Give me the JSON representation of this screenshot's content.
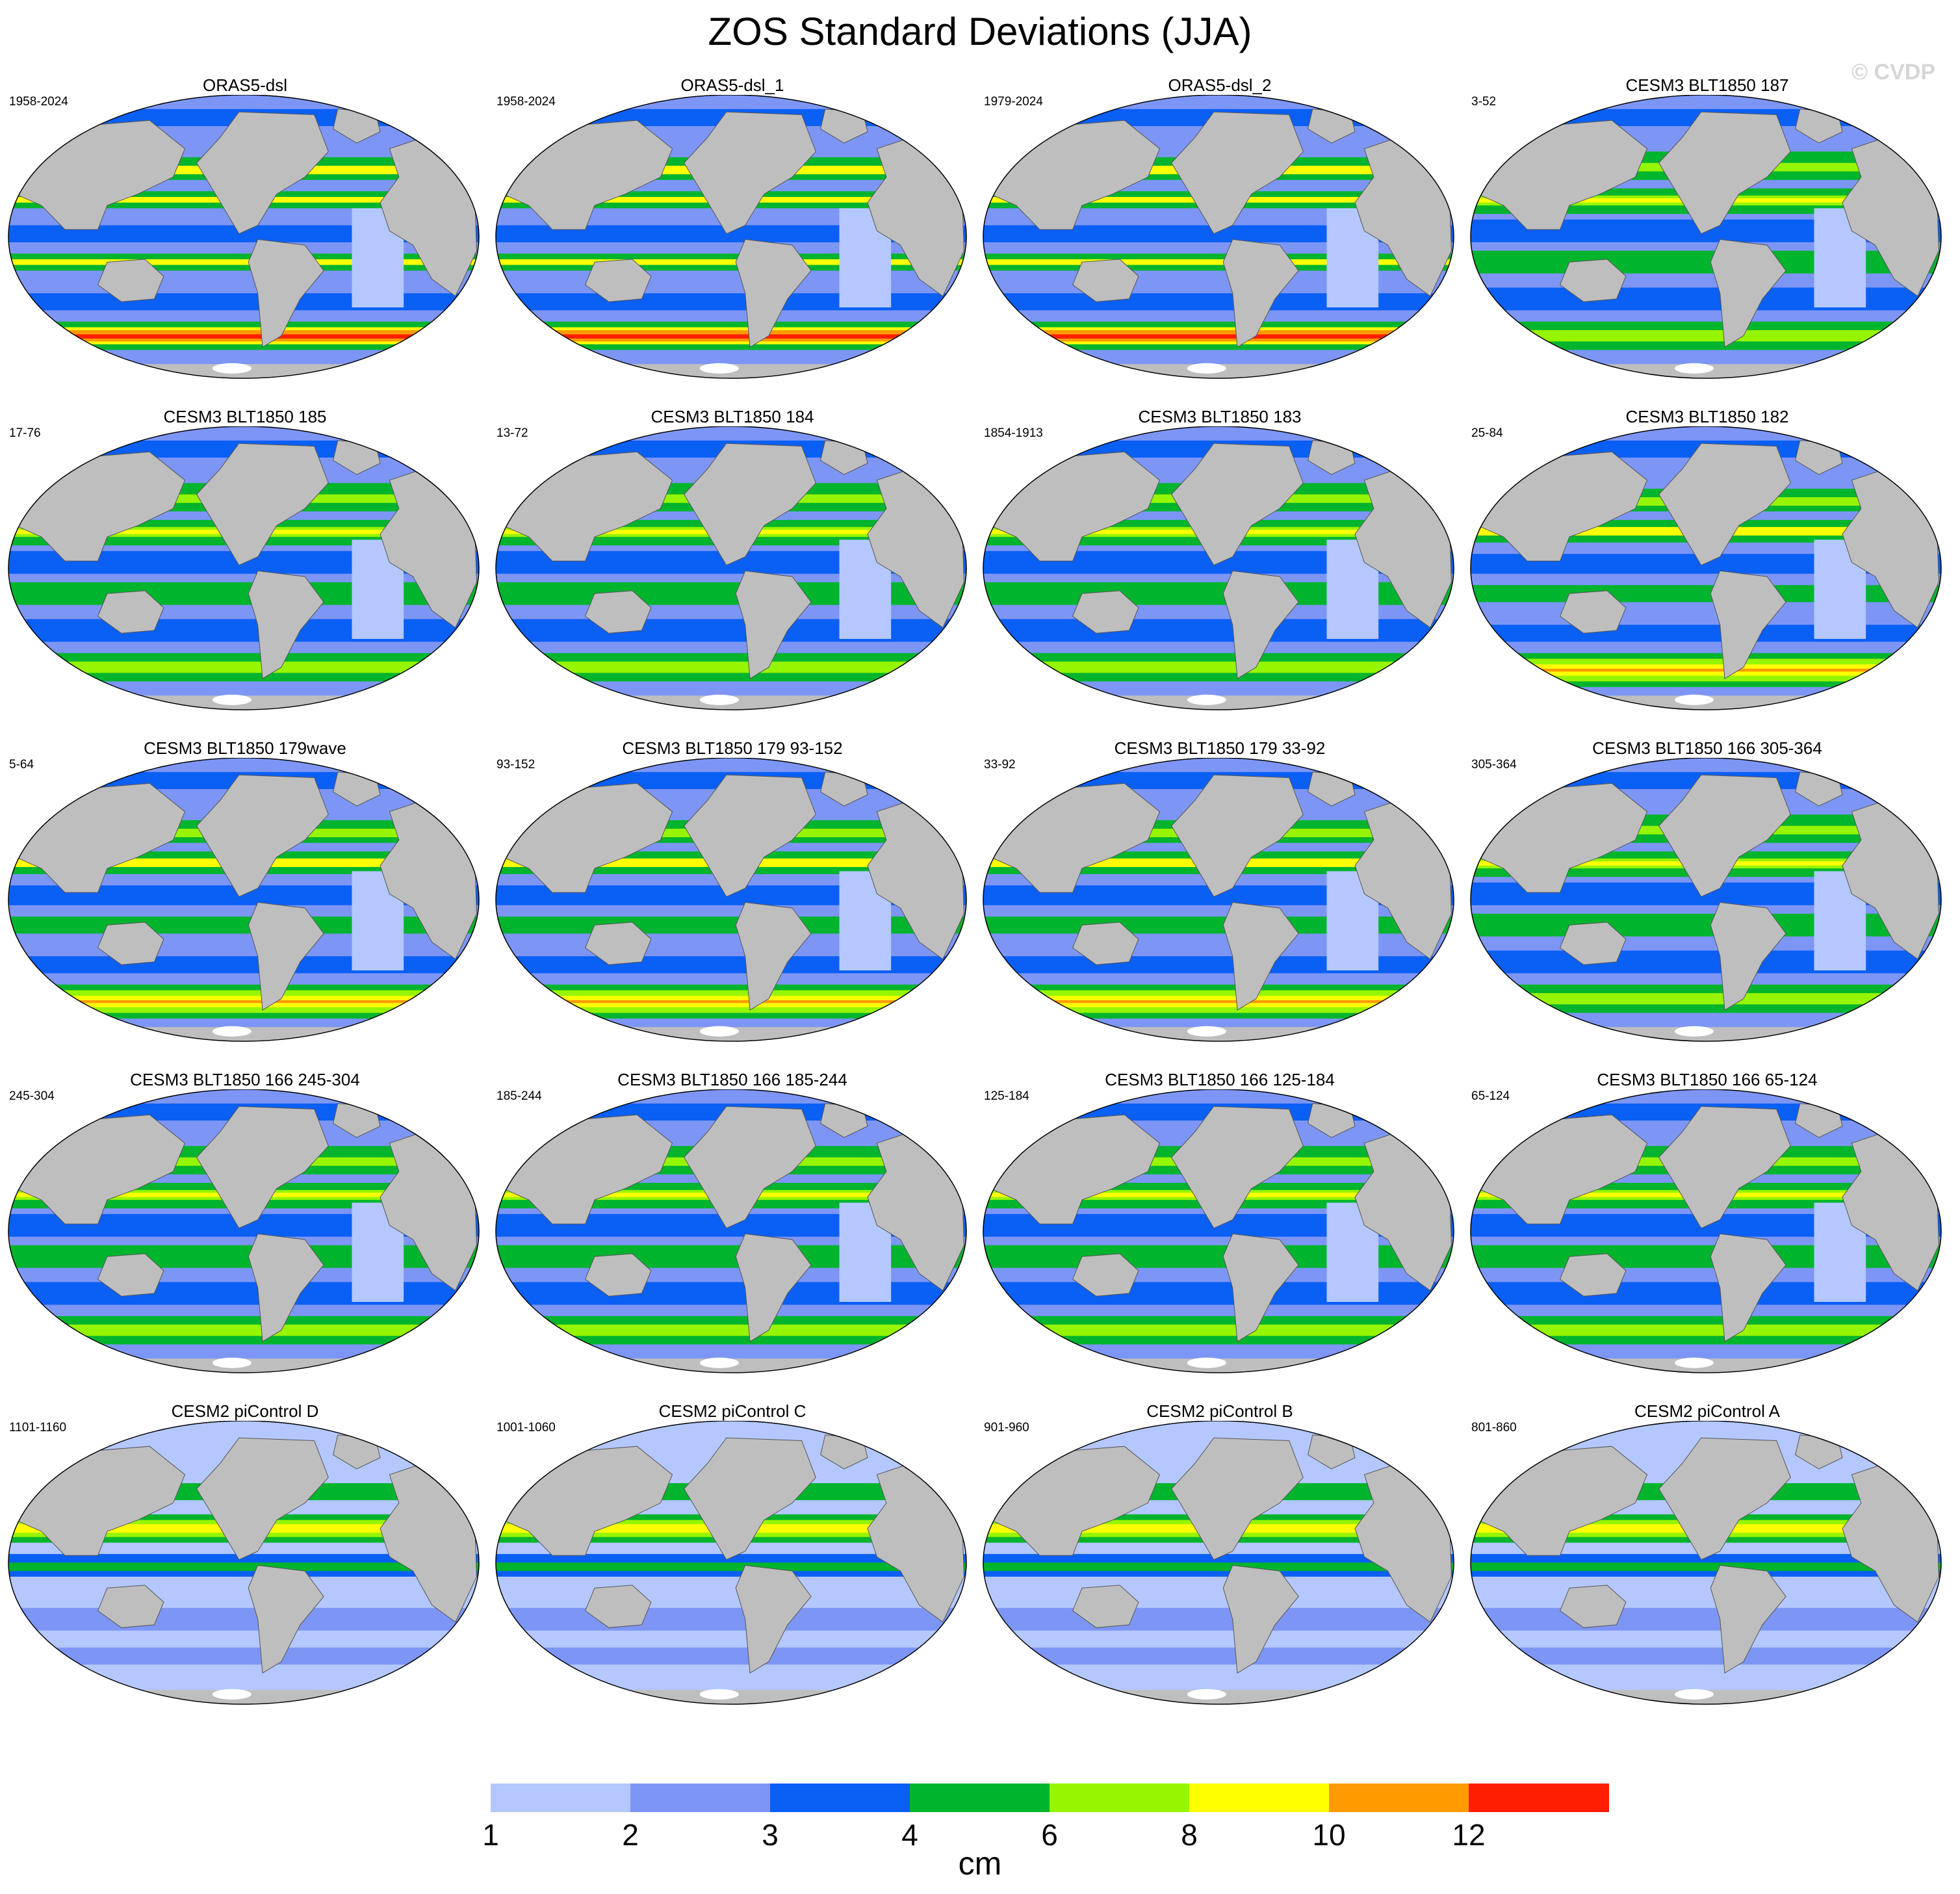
{
  "title": "ZOS Standard Deviations (JJA)",
  "watermark": "© CVDP",
  "panels": [
    {
      "title": "ORAS5-dsl",
      "years": "1958-2024",
      "style": "obs"
    },
    {
      "title": "ORAS5-dsl_1",
      "years": "1958-2024",
      "style": "obs"
    },
    {
      "title": "ORAS5-dsl_2",
      "years": "1979-2024",
      "style": "obs"
    },
    {
      "title": "CESM3 BLT1850 187",
      "years": "3-52",
      "style": "model"
    },
    {
      "title": "CESM3 BLT1850 185",
      "years": "17-76",
      "style": "model"
    },
    {
      "title": "CESM3 BLT1850 184",
      "years": "13-72",
      "style": "model"
    },
    {
      "title": "CESM3 BLT1850 183",
      "years": "1854-1913",
      "style": "model"
    },
    {
      "title": "CESM3 BLT1850 182",
      "years": "25-84",
      "style": "model-south"
    },
    {
      "title": "CESM3 BLT1850 179wave",
      "years": "5-64",
      "style": "model-south"
    },
    {
      "title": "CESM3 BLT1850 179 93-152",
      "years": "93-152",
      "style": "model-south"
    },
    {
      "title": "CESM3 BLT1850 179 33-92",
      "years": "33-92",
      "style": "model-south"
    },
    {
      "title": "CESM3 BLT1850 166 305-364",
      "years": "305-364",
      "style": "model"
    },
    {
      "title": "CESM3 BLT1850 166 245-304",
      "years": "245-304",
      "style": "model"
    },
    {
      "title": "CESM3 BLT1850 166 185-244",
      "years": "185-244",
      "style": "model"
    },
    {
      "title": "CESM3 BLT1850 166 125-184",
      "years": "125-184",
      "style": "model"
    },
    {
      "title": "CESM3 BLT1850 166 65-124",
      "years": "65-124",
      "style": "model"
    },
    {
      "title": "CESM2 piControl D",
      "years": "1101-1160",
      "style": "pi"
    },
    {
      "title": "CESM2 piControl C",
      "years": "1001-1060",
      "style": "pi"
    },
    {
      "title": "CESM2 piControl B",
      "years": "901-960",
      "style": "pi"
    },
    {
      "title": "CESM2 piControl A",
      "years": "801-860",
      "style": "pi"
    }
  ],
  "colorbar": {
    "colors": [
      "#ffffff",
      "#b4c8ff",
      "#7d96f5",
      "#0a5ff5",
      "#00b42d",
      "#96f500",
      "#ffff00",
      "#ff9b00",
      "#ff1e00"
    ],
    "labels": [
      "1",
      "2",
      "3",
      "4",
      "6",
      "8",
      "10",
      "12"
    ],
    "units": "cm"
  },
  "land_color": "#bebebe"
}
